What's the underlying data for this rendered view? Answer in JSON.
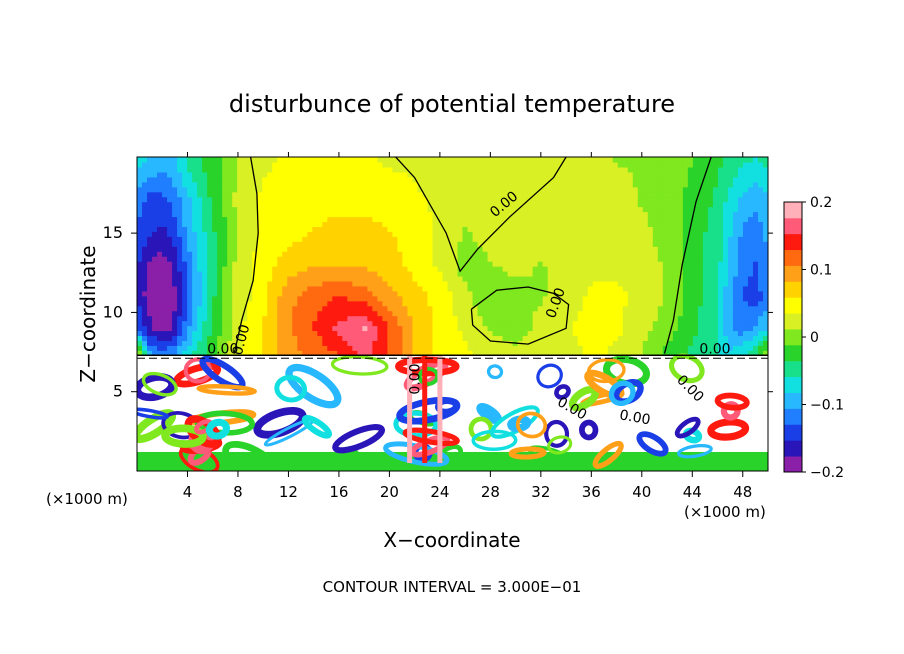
{
  "chart_data": {
    "type": "heatmap",
    "title": "disturbunce of potential temperature",
    "xlabel": "X−coordinate",
    "ylabel": "Z−coordinate",
    "x_unit": "(×1000 m)",
    "footer": "CONTOUR INTERVAL = 3.000E−01",
    "xlim": [
      0,
      50
    ],
    "ylim": [
      0,
      19.8
    ],
    "x_ticks": [
      4,
      8,
      12,
      16,
      20,
      24,
      28,
      32,
      36,
      40,
      44,
      48
    ],
    "y_ticks": [
      5,
      10,
      15
    ],
    "colorbar": {
      "range": [
        -0.2,
        0.2
      ],
      "tick_values": [
        0.2,
        0.1,
        0,
        -0.1,
        -0.2
      ],
      "tick_labels": [
        "0.2",
        "0.1",
        "0",
        "−0.1",
        "−0.2"
      ],
      "colors": [
        "#8a1fa8",
        "#2a16b8",
        "#1b3fe6",
        "#1f7fff",
        "#28b8ff",
        "#12e0e0",
        "#18e08a",
        "#2ad32a",
        "#7fe81e",
        "#d8f024",
        "#ffff00",
        "#ffd200",
        "#ffa018",
        "#ff6a10",
        "#ff1a10",
        "#ff5a78",
        "#ffb0b8"
      ]
    },
    "contour_labels": [
      "0.00",
      "0.00",
      "0.00",
      "0.00",
      "0.00",
      "0.00",
      "0.00",
      "0.00",
      "0.00"
    ],
    "surface_height": 7.3,
    "upper_field": {
      "x": [
        0,
        1,
        2,
        3,
        4,
        6,
        8,
        10,
        12,
        14,
        16,
        18,
        20,
        22,
        24,
        26,
        28,
        30,
        32,
        34,
        36,
        38,
        40,
        42,
        44,
        46,
        47,
        48,
        49,
        50
      ],
      "z": [
        7.3,
        9,
        11,
        13,
        15,
        17,
        19.8
      ],
      "values": [
        [
          0.03,
          -0.1,
          -0.12,
          -0.1,
          -0.07,
          -0.02,
          0.03,
          0.06,
          0.1,
          0.11,
          0.13,
          0.16,
          0.13,
          0.08,
          0.05,
          0.04,
          0.03,
          0.02,
          0.03,
          0.02,
          0.04,
          0.03,
          0.01,
          -0.02,
          -0.04,
          -0.06,
          -0.08,
          -0.06,
          -0.03,
          0.02
        ],
        [
          -0.12,
          -0.17,
          -0.19,
          -0.17,
          -0.11,
          -0.03,
          0.03,
          0.06,
          0.1,
          0.13,
          0.16,
          0.18,
          0.13,
          0.08,
          0.05,
          0.03,
          0.01,
          0.0,
          0.02,
          0.03,
          0.05,
          0.04,
          0.02,
          0.0,
          -0.03,
          -0.06,
          -0.1,
          -0.12,
          -0.1,
          -0.08
        ],
        [
          -0.16,
          -0.19,
          -0.2,
          -0.18,
          -0.13,
          -0.04,
          0.02,
          0.05,
          0.1,
          0.12,
          0.13,
          0.12,
          0.09,
          0.07,
          0.05,
          0.02,
          -0.01,
          0.0,
          0.01,
          0.02,
          0.04,
          0.04,
          0.03,
          0.01,
          -0.02,
          -0.06,
          -0.1,
          -0.13,
          -0.14,
          -0.12
        ],
        [
          -0.15,
          -0.18,
          -0.19,
          -0.17,
          -0.12,
          -0.04,
          0.02,
          0.05,
          0.07,
          0.08,
          0.08,
          0.08,
          0.07,
          0.05,
          0.03,
          0.0,
          0.01,
          0.02,
          0.01,
          0.02,
          0.03,
          0.03,
          0.02,
          0.01,
          -0.02,
          -0.05,
          -0.09,
          -0.12,
          -0.13,
          -0.11
        ],
        [
          -0.13,
          -0.15,
          -0.16,
          -0.14,
          -0.1,
          -0.04,
          0.01,
          0.04,
          0.05,
          0.06,
          0.07,
          0.07,
          0.06,
          0.05,
          0.03,
          0.01,
          0.02,
          0.03,
          0.02,
          0.02,
          0.02,
          0.02,
          0.02,
          0.0,
          -0.02,
          -0.05,
          -0.08,
          -0.11,
          -0.12,
          -0.1
        ],
        [
          -0.12,
          -0.14,
          -0.14,
          -0.12,
          -0.09,
          -0.03,
          0.02,
          0.04,
          0.04,
          0.05,
          0.05,
          0.05,
          0.05,
          0.04,
          0.03,
          0.02,
          0.02,
          0.02,
          0.02,
          0.02,
          0.02,
          0.02,
          0.01,
          0.0,
          -0.02,
          -0.04,
          -0.07,
          -0.09,
          -0.1,
          -0.09
        ],
        [
          -0.07,
          -0.08,
          -0.09,
          -0.08,
          -0.05,
          -0.02,
          0.01,
          0.03,
          0.04,
          0.04,
          0.04,
          0.04,
          0.03,
          0.03,
          0.02,
          0.02,
          0.02,
          0.02,
          0.02,
          0.02,
          0.02,
          0.01,
          0.01,
          0.0,
          -0.01,
          -0.03,
          -0.04,
          -0.05,
          -0.06,
          -0.05
        ]
      ]
    }
  }
}
